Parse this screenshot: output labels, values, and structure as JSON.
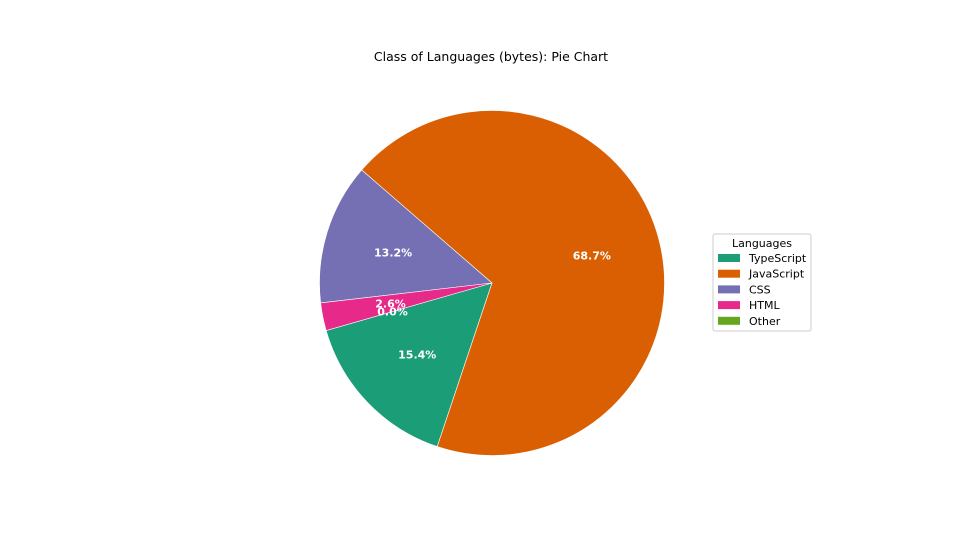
{
  "chart_data": {
    "type": "pie",
    "title": "Class of Languages (bytes): Pie Chart",
    "legend": {
      "title": "Languages",
      "placement": "right"
    },
    "slices": [
      {
        "name": "TypeScript",
        "value": 15.4,
        "label": "15.4%",
        "color": "#1b9e77"
      },
      {
        "name": "JavaScript",
        "value": 68.7,
        "label": "68.7%",
        "color": "#d95f02"
      },
      {
        "name": "CSS",
        "value": 13.2,
        "label": "13.2%",
        "color": "#7570b3"
      },
      {
        "name": "HTML",
        "value": 2.6,
        "label": "2.6%",
        "color": "#e7298a"
      },
      {
        "name": "Other",
        "value": 0.0,
        "label": "0.0%",
        "color": "#66a61e"
      }
    ]
  }
}
